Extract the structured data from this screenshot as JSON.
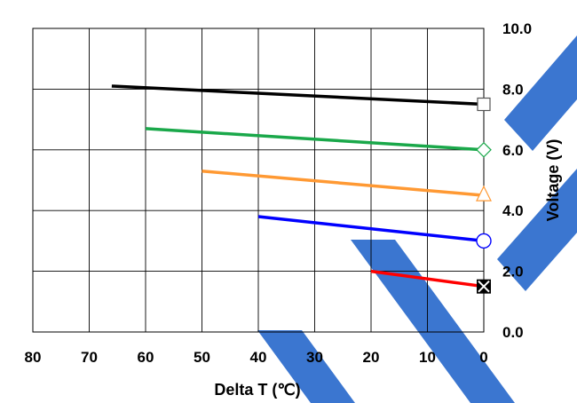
{
  "chart_data": {
    "type": "line",
    "title": "",
    "xlabel": "Delta T (℃)",
    "ylabel": "Voltage (V)",
    "x_direction": "reversed",
    "xlim": [
      0,
      80
    ],
    "ylim": [
      0,
      10
    ],
    "x_ticks": [
      "80",
      "70",
      "60",
      "50",
      "40",
      "30",
      "20",
      "10",
      "0"
    ],
    "y_ticks": [
      "0.0",
      "2.0",
      "4.0",
      "6.0",
      "8.0",
      "10.0"
    ],
    "grid": true,
    "y_axis_side": "right",
    "series": [
      {
        "color": "#000000",
        "marker": "square",
        "x": [
          66,
          0
        ],
        "y": [
          8.1,
          7.5
        ]
      },
      {
        "color": "#1aa84a",
        "marker": "diamond",
        "x": [
          60,
          0
        ],
        "y": [
          6.7,
          6.0
        ]
      },
      {
        "color": "#ff9933",
        "marker": "triangle",
        "x": [
          50,
          0
        ],
        "y": [
          5.3,
          4.5
        ]
      },
      {
        "color": "#0000ff",
        "marker": "circle",
        "x": [
          40,
          0
        ],
        "y": [
          3.8,
          3.0
        ]
      },
      {
        "color": "#ff0000",
        "marker": "x-square",
        "x": [
          20,
          0
        ],
        "y": [
          2.0,
          1.5
        ]
      }
    ]
  },
  "colors": {
    "watermark": "#3b76d0",
    "grid": "#000000"
  }
}
